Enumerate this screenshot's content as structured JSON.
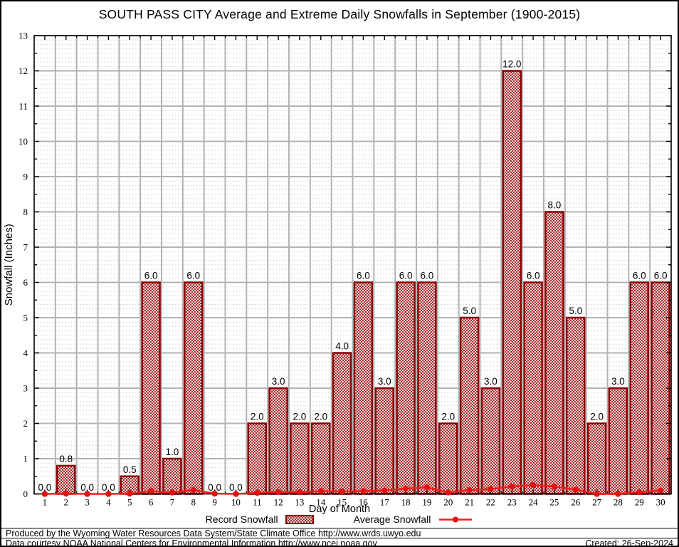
{
  "title": "SOUTH PASS CITY Average and Extreme Daily Snowfalls in September (1900-2015)",
  "chart_data": {
    "type": "bar",
    "title": "SOUTH PASS CITY Average and Extreme Daily Snowfalls in September (1900-2015)",
    "xlabel": "Day of Month",
    "ylabel": "Snowfall (Inches)",
    "ylim": [
      0,
      13
    ],
    "ytick_step": 1,
    "grid": "major solid gray + minor dotted, box frame with mirrored ticks",
    "legend_position": "bottom",
    "categories": [
      1,
      2,
      3,
      4,
      5,
      6,
      7,
      8,
      9,
      10,
      11,
      12,
      13,
      14,
      15,
      16,
      17,
      18,
      19,
      20,
      21,
      22,
      23,
      24,
      25,
      26,
      27,
      28,
      29,
      30
    ],
    "series": [
      {
        "name": "Record Snowfall",
        "type": "bar",
        "values": [
          0.0,
          0.8,
          0.0,
          0.0,
          0.5,
          6.0,
          1.0,
          6.0,
          0.0,
          0.0,
          2.0,
          3.0,
          2.0,
          2.0,
          4.0,
          6.0,
          3.0,
          6.0,
          6.0,
          2.0,
          5.0,
          3.0,
          12.0,
          6.0,
          8.0,
          5.0,
          2.0,
          3.0,
          6.0,
          6.0
        ]
      },
      {
        "name": "Average Snowfall",
        "type": "line",
        "values": [
          0.0,
          0.01,
          0.0,
          0.0,
          0.01,
          0.08,
          0.04,
          0.11,
          0.01,
          0.0,
          0.03,
          0.06,
          0.05,
          0.08,
          0.07,
          0.08,
          0.1,
          0.15,
          0.19,
          0.04,
          0.11,
          0.14,
          0.21,
          0.25,
          0.21,
          0.12,
          0.0,
          0.0,
          0.05,
          0.1
        ]
      }
    ],
    "bar_labels_format": "0.0",
    "colors": {
      "bar_border": "#8b0000",
      "bar_hatch": "#9b1414",
      "line": "#ff1a1a",
      "marker": "#e51010",
      "grid_major": "#b3b3b3",
      "grid_minor": "#cccccc",
      "axis": "#000000",
      "label_text": "#000000"
    }
  },
  "footer": {
    "produced_by": "Produced by the Wyoming Water Resources Data System/State Climate Office http://www.wrds.uwyo.edu",
    "data_courtesy": "Data courtesy NOAA National Centers for Environmental Information http://www.ncei.noaa.gov",
    "created": "Created: 26-Sep-2024"
  }
}
